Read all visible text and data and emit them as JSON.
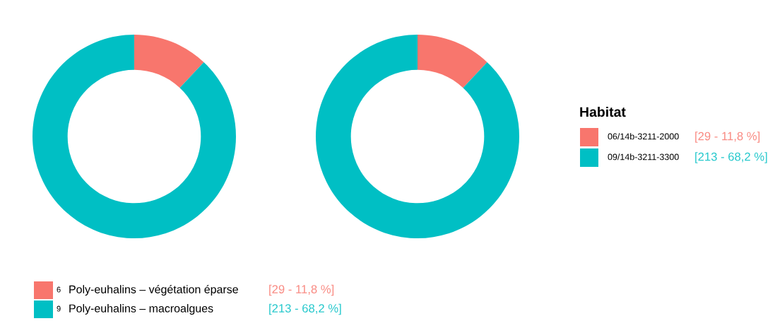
{
  "chart_data": [
    {
      "type": "donut",
      "categories": [
        "Poly-euhalins – végétation éparse",
        "Poly-euhalins – macroalgues"
      ],
      "annotations": [
        "6",
        "9"
      ],
      "values": [
        29,
        213
      ],
      "colors": [
        "#f8766d",
        "#00bfc4"
      ],
      "value_labels": [
        "[29 - 11,8 %]",
        "[213 - 68,2 %]"
      ],
      "legend": "bottom left"
    },
    {
      "type": "donut",
      "legend_title": "Habitat",
      "categories": [
        "06/14b-3211-2000",
        "09/14b-3211-3300"
      ],
      "values": [
        29,
        213
      ],
      "colors": [
        "#f8766d",
        "#00bfc4"
      ],
      "value_labels": [
        "[29 - 11,8 %]",
        "[213 - 68,2 %]"
      ],
      "legend": "right"
    }
  ]
}
